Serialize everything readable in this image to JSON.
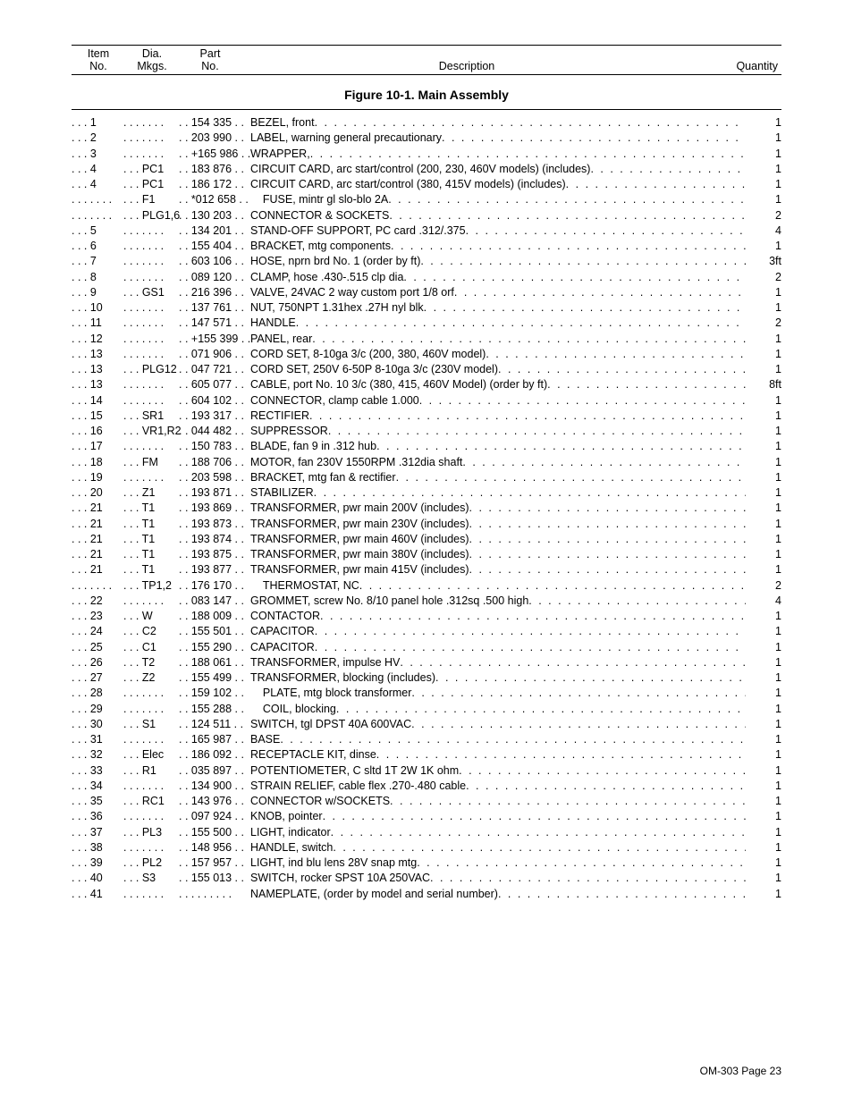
{
  "header": {
    "col1a": "Item",
    "col1b": "No.",
    "col2a": "Dia.",
    "col2b": "Mkgs.",
    "col3a": "Part",
    "col3b": "No.",
    "col4": "Description",
    "col5": "Quantity"
  },
  "figure_title": "Figure 10-1. Main Assembly",
  "footer": "OM-303 Page 23",
  "rows": [
    {
      "item": "1",
      "dia": "",
      "part": "154 335",
      "desc": "BEZEL, front",
      "qty": "1",
      "indent": 0
    },
    {
      "item": "2",
      "dia": "",
      "part": "203 990",
      "desc": "LABEL, warning general precautionary",
      "qty": "1",
      "indent": 0
    },
    {
      "item": "3",
      "dia": "",
      "part": "+165 986",
      "desc": "WRAPPER,",
      "qty": "1",
      "indent": 0
    },
    {
      "item": "4",
      "dia": "PC1",
      "part": "183 876",
      "desc": "CIRCUIT CARD, arc start/control (200, 230, 460V models) (includes)",
      "qty": "1",
      "indent": 0
    },
    {
      "item": "4",
      "dia": "PC1",
      "part": "186 172",
      "desc": "CIRCUIT CARD, arc start/control (380, 415V models) (includes)",
      "qty": "1",
      "indent": 0
    },
    {
      "item": "",
      "dia": "F1",
      "part": "*012 658",
      "desc": "FUSE, mintr gl slo-blo 2A",
      "qty": "1",
      "indent": 1
    },
    {
      "item": "",
      "dia": "PLG1,6",
      "part": "130 203",
      "desc": "CONNECTOR & SOCKETS",
      "qty": "2",
      "indent": 0
    },
    {
      "item": "5",
      "dia": "",
      "part": "134 201",
      "desc": "STAND-OFF SUPPORT, PC card .312/.375",
      "qty": "4",
      "indent": 0
    },
    {
      "item": "6",
      "dia": "",
      "part": "155 404",
      "desc": "BRACKET, mtg components",
      "qty": "1",
      "indent": 0
    },
    {
      "item": "7",
      "dia": "",
      "part": "603 106",
      "desc": "HOSE, nprn brd No. 1 (order by ft)",
      "qty": "3ft",
      "indent": 0
    },
    {
      "item": "8",
      "dia": "",
      "part": "089 120",
      "desc": "CLAMP, hose .430-.515 clp dia",
      "qty": "2",
      "indent": 0
    },
    {
      "item": "9",
      "dia": "GS1",
      "part": "216 396",
      "desc": "VALVE, 24VAC 2 way custom port 1/8 orf",
      "qty": "1",
      "indent": 0
    },
    {
      "item": "10",
      "dia": "",
      "part": "137 761",
      "desc": "NUT, 750NPT 1.31hex .27H nyl blk",
      "qty": "1",
      "indent": 0
    },
    {
      "item": "11",
      "dia": "",
      "part": "147 571",
      "desc": "HANDLE",
      "qty": "2",
      "indent": 0
    },
    {
      "item": "12",
      "dia": "",
      "part": "+155 399",
      "desc": "PANEL, rear",
      "qty": "1",
      "indent": 0
    },
    {
      "item": "13",
      "dia": "",
      "part": "071 906",
      "desc": "CORD SET, 8-10ga 3/c (200, 380, 460V model)",
      "qty": "1",
      "indent": 0
    },
    {
      "item": "13",
      "dia": "PLG12",
      "part": "047 721",
      "desc": "CORD SET, 250V 6-50P 8-10ga 3/c (230V model)",
      "qty": "1",
      "indent": 0
    },
    {
      "item": "13",
      "dia": "",
      "part": "605 077",
      "desc": "CABLE, port No. 10 3/c (380, 415, 460V Model) (order by ft)",
      "qty": "8ft",
      "indent": 0
    },
    {
      "item": "14",
      "dia": "",
      "part": "604 102",
      "desc": "CONNECTOR, clamp cable 1.000",
      "qty": "1",
      "indent": 0
    },
    {
      "item": "15",
      "dia": "SR1",
      "part": "193 317",
      "desc": "RECTIFIER",
      "qty": "1",
      "indent": 0
    },
    {
      "item": "16",
      "dia": "VR1,R2",
      "part": "044 482",
      "desc": "SUPPRESSOR",
      "qty": "1",
      "indent": 0
    },
    {
      "item": "17",
      "dia": "",
      "part": "150 783",
      "desc": "BLADE, fan 9 in .312 hub",
      "qty": "1",
      "indent": 0
    },
    {
      "item": "18",
      "dia": "FM",
      "part": "188 706",
      "desc": "MOTOR, fan 230V 1550RPM .312dia shaft",
      "qty": "1",
      "indent": 0
    },
    {
      "item": "19",
      "dia": "",
      "part": "203 598",
      "desc": "BRACKET, mtg fan & rectifier",
      "qty": "1",
      "indent": 0
    },
    {
      "item": "20",
      "dia": "Z1",
      "part": "193 871",
      "desc": "STABILIZER",
      "qty": "1",
      "indent": 0
    },
    {
      "item": "21",
      "dia": "T1",
      "part": "193 869",
      "desc": "TRANSFORMER, pwr main 200V (includes)",
      "qty": "1",
      "indent": 0
    },
    {
      "item": "21",
      "dia": "T1",
      "part": "193 873",
      "desc": "TRANSFORMER, pwr main 230V (includes)",
      "qty": "1",
      "indent": 0
    },
    {
      "item": "21",
      "dia": "T1",
      "part": "193 874",
      "desc": "TRANSFORMER, pwr main 460V (includes)",
      "qty": "1",
      "indent": 0
    },
    {
      "item": "21",
      "dia": "T1",
      "part": "193 875",
      "desc": "TRANSFORMER, pwr main 380V (includes)",
      "qty": "1",
      "indent": 0
    },
    {
      "item": "21",
      "dia": "T1",
      "part": "193 877",
      "desc": "TRANSFORMER, pwr main 415V (includes)",
      "qty": "1",
      "indent": 0
    },
    {
      "item": "",
      "dia": "TP1,2",
      "part": "176 170",
      "desc": "THERMOSTAT, NC",
      "qty": "2",
      "indent": 1
    },
    {
      "item": "22",
      "dia": "",
      "part": "083 147",
      "desc": "GROMMET, screw No. 8/10 panel hole .312sq .500 high",
      "qty": "4",
      "indent": 0
    },
    {
      "item": "23",
      "dia": "W",
      "part": "188 009",
      "desc": "CONTACTOR",
      "qty": "1",
      "indent": 0
    },
    {
      "item": "24",
      "dia": "C2",
      "part": "155 501",
      "desc": "CAPACITOR",
      "qty": "1",
      "indent": 0
    },
    {
      "item": "25",
      "dia": "C1",
      "part": "155 290",
      "desc": "CAPACITOR",
      "qty": "1",
      "indent": 0
    },
    {
      "item": "26",
      "dia": "T2",
      "part": "188 061",
      "desc": "TRANSFORMER, impulse HV",
      "qty": "1",
      "indent": 0
    },
    {
      "item": "27",
      "dia": "Z2",
      "part": "155 499",
      "desc": "TRANSFORMER, blocking (includes)",
      "qty": "1",
      "indent": 0
    },
    {
      "item": "28",
      "dia": "",
      "part": "159 102",
      "desc": "PLATE, mtg block transformer",
      "qty": "1",
      "indent": 1
    },
    {
      "item": "29",
      "dia": "",
      "part": "155 288",
      "desc": "COIL, blocking",
      "qty": "1",
      "indent": 1
    },
    {
      "item": "30",
      "dia": "S1",
      "part": "124 511",
      "desc": "SWITCH, tgl DPST 40A 600VAC",
      "qty": "1",
      "indent": 0
    },
    {
      "item": "31",
      "dia": "",
      "part": "165 987",
      "desc": "BASE",
      "qty": "1",
      "indent": 0
    },
    {
      "item": "32",
      "dia": "Elec",
      "part": "186 092",
      "desc": "RECEPTACLE KIT, dinse",
      "qty": "1",
      "indent": 0
    },
    {
      "item": "33",
      "dia": "R1",
      "part": "035 897",
      "desc": "POTENTIOMETER, C sltd 1T 2W 1K ohm",
      "qty": "1",
      "indent": 0
    },
    {
      "item": "34",
      "dia": "",
      "part": "134 900",
      "desc": "STRAIN RELIEF, cable flex .270-.480 cable",
      "qty": "1",
      "indent": 0
    },
    {
      "item": "35",
      "dia": "RC1",
      "part": "143 976",
      "desc": "CONNECTOR w/SOCKETS",
      "qty": "1",
      "indent": 0
    },
    {
      "item": "36",
      "dia": "",
      "part": "097 924",
      "desc": "KNOB, pointer",
      "qty": "1",
      "indent": 0
    },
    {
      "item": "37",
      "dia": "PL3",
      "part": "155 500",
      "desc": "LIGHT, indicator",
      "qty": "1",
      "indent": 0
    },
    {
      "item": "38",
      "dia": "",
      "part": "148 956",
      "desc": "HANDLE, switch",
      "qty": "1",
      "indent": 0
    },
    {
      "item": "39",
      "dia": "PL2",
      "part": "157 957",
      "desc": "LIGHT, ind blu lens 28V snap mtg",
      "qty": "1",
      "indent": 0
    },
    {
      "item": "40",
      "dia": "S3",
      "part": "155 013",
      "desc": "SWITCH, rocker SPST 10A 250VAC",
      "qty": "1",
      "indent": 0
    },
    {
      "item": "41",
      "dia": "",
      "part": "",
      "desc": "NAMEPLATE, (order by model and serial number)",
      "qty": "1",
      "indent": 0
    }
  ]
}
